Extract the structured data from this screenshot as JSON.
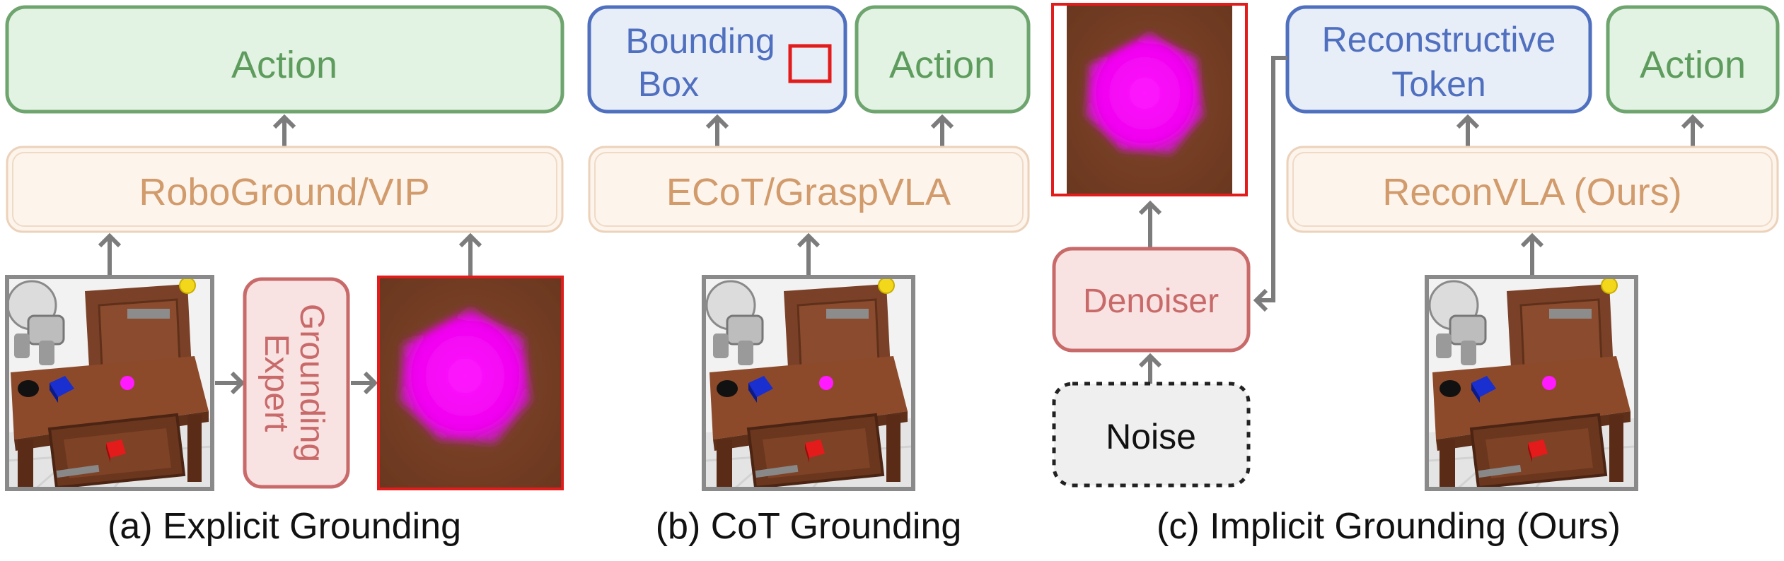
{
  "panel_a": {
    "action": "Action",
    "model": "RoboGround/VIP",
    "expert_line1": "Grounding",
    "expert_line2": "Expert",
    "caption": "(a) Explicit Grounding"
  },
  "panel_b": {
    "output_line1": "Bounding",
    "output_line2": "Box",
    "action": "Action",
    "model": "ECoT/GraspVLA",
    "caption": "(b) CoT Grounding"
  },
  "panel_c": {
    "output_line1": "Reconstructive",
    "output_line2": "Token",
    "action": "Action",
    "model": "ReconVLA (Ours)",
    "denoiser": "Denoiser",
    "noise": "Noise",
    "caption": "(c) Implicit Grounding (Ours)"
  },
  "colors": {
    "action_green": "#5e9c5e",
    "token_blue": "#4f6fbf",
    "model_orange": "#d19b6c",
    "denoiser_red": "#c86a6a",
    "target_magenta": "#ff00ff",
    "crop_red": "#e21b1b"
  },
  "icons": [
    "robot-scene-image",
    "magenta-target-crop",
    "bounding-box-icon",
    "noise-texture"
  ]
}
